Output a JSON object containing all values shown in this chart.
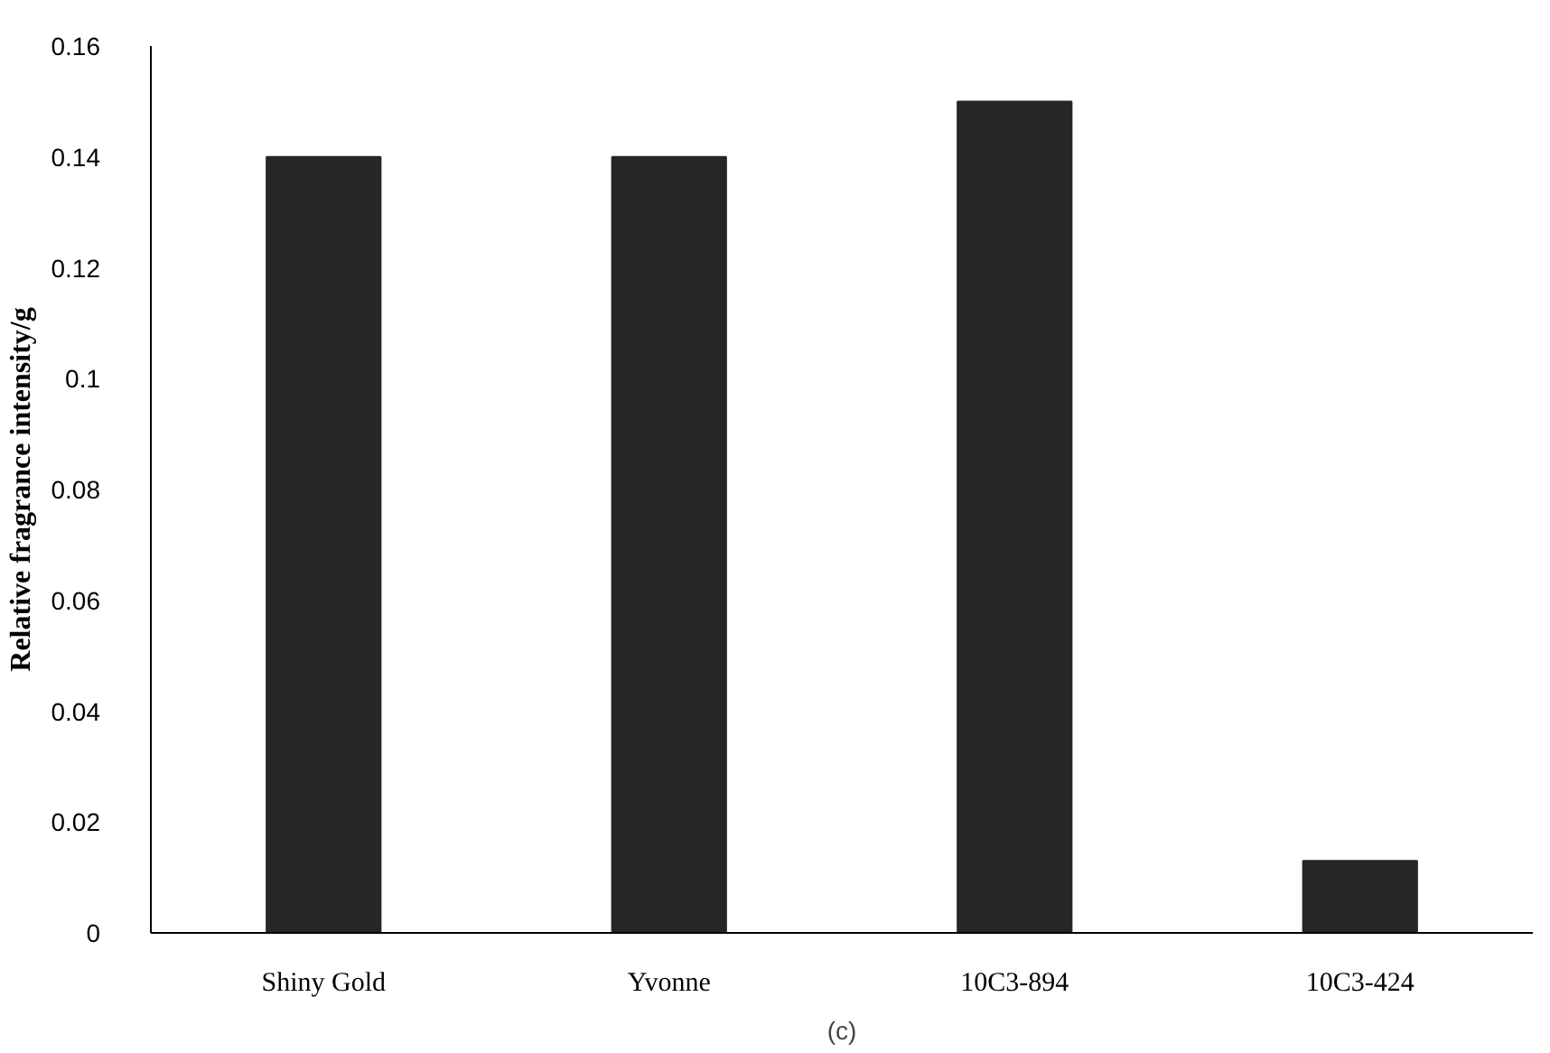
{
  "chart_data": {
    "type": "bar",
    "ylabel": "Relative fragrance intensity/g",
    "categories": [
      "Shiny Gold",
      "Yvonne",
      "10C3-894",
      "10C3-424"
    ],
    "values": [
      0.14,
      0.14,
      0.15,
      0.013
    ],
    "color": "#262626",
    "ylim": [
      0,
      0.16
    ],
    "yticks": [
      0,
      0.02,
      0.04,
      0.06,
      0.08,
      0.1,
      0.12,
      0.14,
      0.16
    ],
    "grid": false,
    "annotations": [
      "(c)"
    ]
  }
}
